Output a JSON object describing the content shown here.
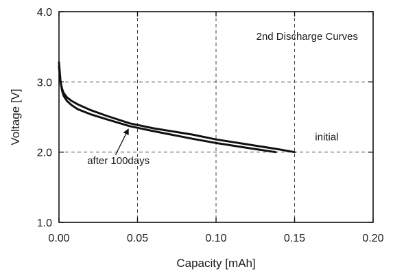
{
  "chart_data": {
    "type": "line",
    "title": "2nd Discharge Curves",
    "xlabel": "Capacity [mAh]",
    "ylabel": "Voltage [V]",
    "xlim": [
      0,
      0.2
    ],
    "ylim": [
      1.0,
      4.0
    ],
    "xticks": [
      0,
      0.05,
      0.1,
      0.15,
      0.2
    ],
    "xtick_labels": [
      "0.00",
      "0.05",
      "0.10",
      "0.15",
      "0.20"
    ],
    "yticks": [
      1.0,
      2.0,
      3.0,
      4.0
    ],
    "ytick_labels": [
      "1.0",
      "2.0",
      "3.0",
      "4.0"
    ],
    "grid": true,
    "series": [
      {
        "name": "initial",
        "x": [
          0,
          0.001,
          0.002,
          0.003,
          0.005,
          0.008,
          0.012,
          0.02,
          0.03,
          0.045,
          0.06,
          0.085,
          0.1,
          0.12,
          0.14,
          0.15
        ],
        "y": [
          3.22,
          3.0,
          2.9,
          2.84,
          2.78,
          2.73,
          2.68,
          2.6,
          2.52,
          2.41,
          2.34,
          2.25,
          2.18,
          2.11,
          2.04,
          2.0
        ]
      },
      {
        "name": "after 100days",
        "x": [
          0,
          0.001,
          0.002,
          0.003,
          0.005,
          0.008,
          0.012,
          0.02,
          0.03,
          0.045,
          0.06,
          0.085,
          0.1,
          0.12,
          0.138
        ],
        "y": [
          3.28,
          3.0,
          2.87,
          2.8,
          2.73,
          2.67,
          2.61,
          2.54,
          2.47,
          2.37,
          2.3,
          2.19,
          2.13,
          2.06,
          2.0
        ]
      }
    ],
    "annotations": {
      "initial_label": "initial",
      "after_label": "after 100days",
      "arrow_target": [
        0.044,
        2.32
      ]
    }
  }
}
